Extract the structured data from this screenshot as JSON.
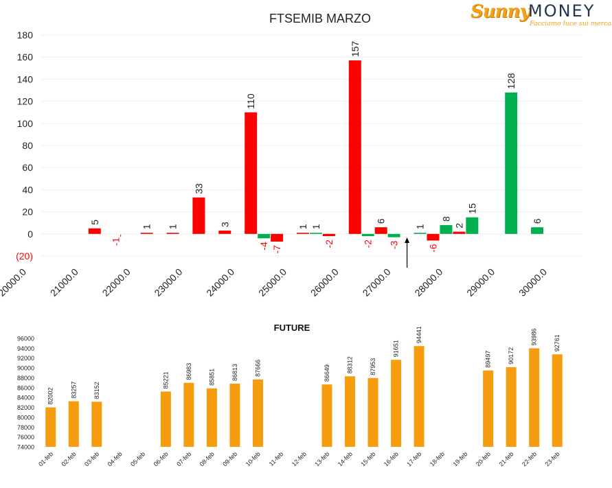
{
  "brand": {
    "name_part1": "Sunny",
    "name_part2": "MONEY",
    "tagline": "Facciamo luce sui mercati"
  },
  "colors": {
    "positive": "#00b050",
    "negative": "#ff0000",
    "future_bar": "#f59d0e",
    "text": "#222222"
  },
  "chart_data": [
    {
      "type": "bar",
      "title": "FTSEMIB MARZO",
      "xlabel": "",
      "ylabel": "",
      "ylim": [
        -20,
        180
      ],
      "yticks": [
        180,
        160,
        140,
        120,
        100,
        80,
        60,
        40,
        20,
        0,
        -20
      ],
      "ytick_labels": [
        "180",
        "160",
        "140",
        "120",
        "100",
        "80",
        "60",
        "40",
        "20",
        "0",
        "(20)"
      ],
      "xticks": [
        "20000.0",
        "21000.0",
        "22000.0",
        "23000.0",
        "24000.0",
        "25000.0",
        "26000.0",
        "27000.0",
        "28000.0",
        "29000.0",
        "30000.0"
      ],
      "grid": true,
      "marker": {
        "x": 27000,
        "label": ""
      },
      "bars": [
        {
          "x": 21000,
          "value": 5,
          "series": "red"
        },
        {
          "x": 21500,
          "value": -1,
          "series": "red"
        },
        {
          "x": 22000,
          "value": 1,
          "series": "red"
        },
        {
          "x": 22500,
          "value": 1,
          "series": "red"
        },
        {
          "x": 23000,
          "value": 33,
          "series": "red"
        },
        {
          "x": 23500,
          "value": 3,
          "series": "red"
        },
        {
          "x": 24000,
          "value": 110,
          "series": "red"
        },
        {
          "x": 24250,
          "value": -4,
          "series": "green"
        },
        {
          "x": 24500,
          "value": -7,
          "series": "red"
        },
        {
          "x": 25000,
          "value": 1,
          "series": "red"
        },
        {
          "x": 25250,
          "value": 1,
          "series": "green"
        },
        {
          "x": 25500,
          "value": -2,
          "series": "red"
        },
        {
          "x": 26000,
          "value": 157,
          "series": "red"
        },
        {
          "x": 26250,
          "value": -2,
          "series": "green"
        },
        {
          "x": 26500,
          "value": 6,
          "series": "red"
        },
        {
          "x": 26750,
          "value": -3,
          "series": "green"
        },
        {
          "x": 27250,
          "value": 1,
          "series": "green"
        },
        {
          "x": 27500,
          "value": -6,
          "series": "red"
        },
        {
          "x": 27750,
          "value": 8,
          "series": "green"
        },
        {
          "x": 28000,
          "value": 2,
          "series": "red"
        },
        {
          "x": 28250,
          "value": 15,
          "series": "green"
        },
        {
          "x": 29000,
          "value": 128,
          "series": "green"
        },
        {
          "x": 29500,
          "value": 6,
          "series": "green"
        }
      ]
    },
    {
      "type": "bar",
      "title": "FUTURE",
      "xlabel": "",
      "ylabel": "",
      "ylim": [
        74000,
        96000
      ],
      "yticks": [
        96000,
        94000,
        92000,
        90000,
        88000,
        86000,
        84000,
        82000,
        80000,
        78000,
        76000,
        74000
      ],
      "grid": false,
      "categories": [
        "01-feb",
        "02-feb",
        "03-feb",
        "04-feb",
        "05-feb",
        "06-feb",
        "07-feb",
        "08-feb",
        "09-feb",
        "10-feb",
        "11-feb",
        "12-feb",
        "13-feb",
        "14-feb",
        "15-feb",
        "16-feb",
        "17-feb",
        "18-feb",
        "19-feb",
        "20-feb",
        "21-feb",
        "22-feb",
        "23-feb"
      ],
      "values": [
        82002,
        83257,
        83152,
        null,
        null,
        85221,
        86983,
        85851,
        86813,
        87666,
        null,
        null,
        86649,
        88312,
        87953,
        91651,
        94441,
        null,
        null,
        89497,
        90172,
        93986,
        92761
      ]
    }
  ]
}
